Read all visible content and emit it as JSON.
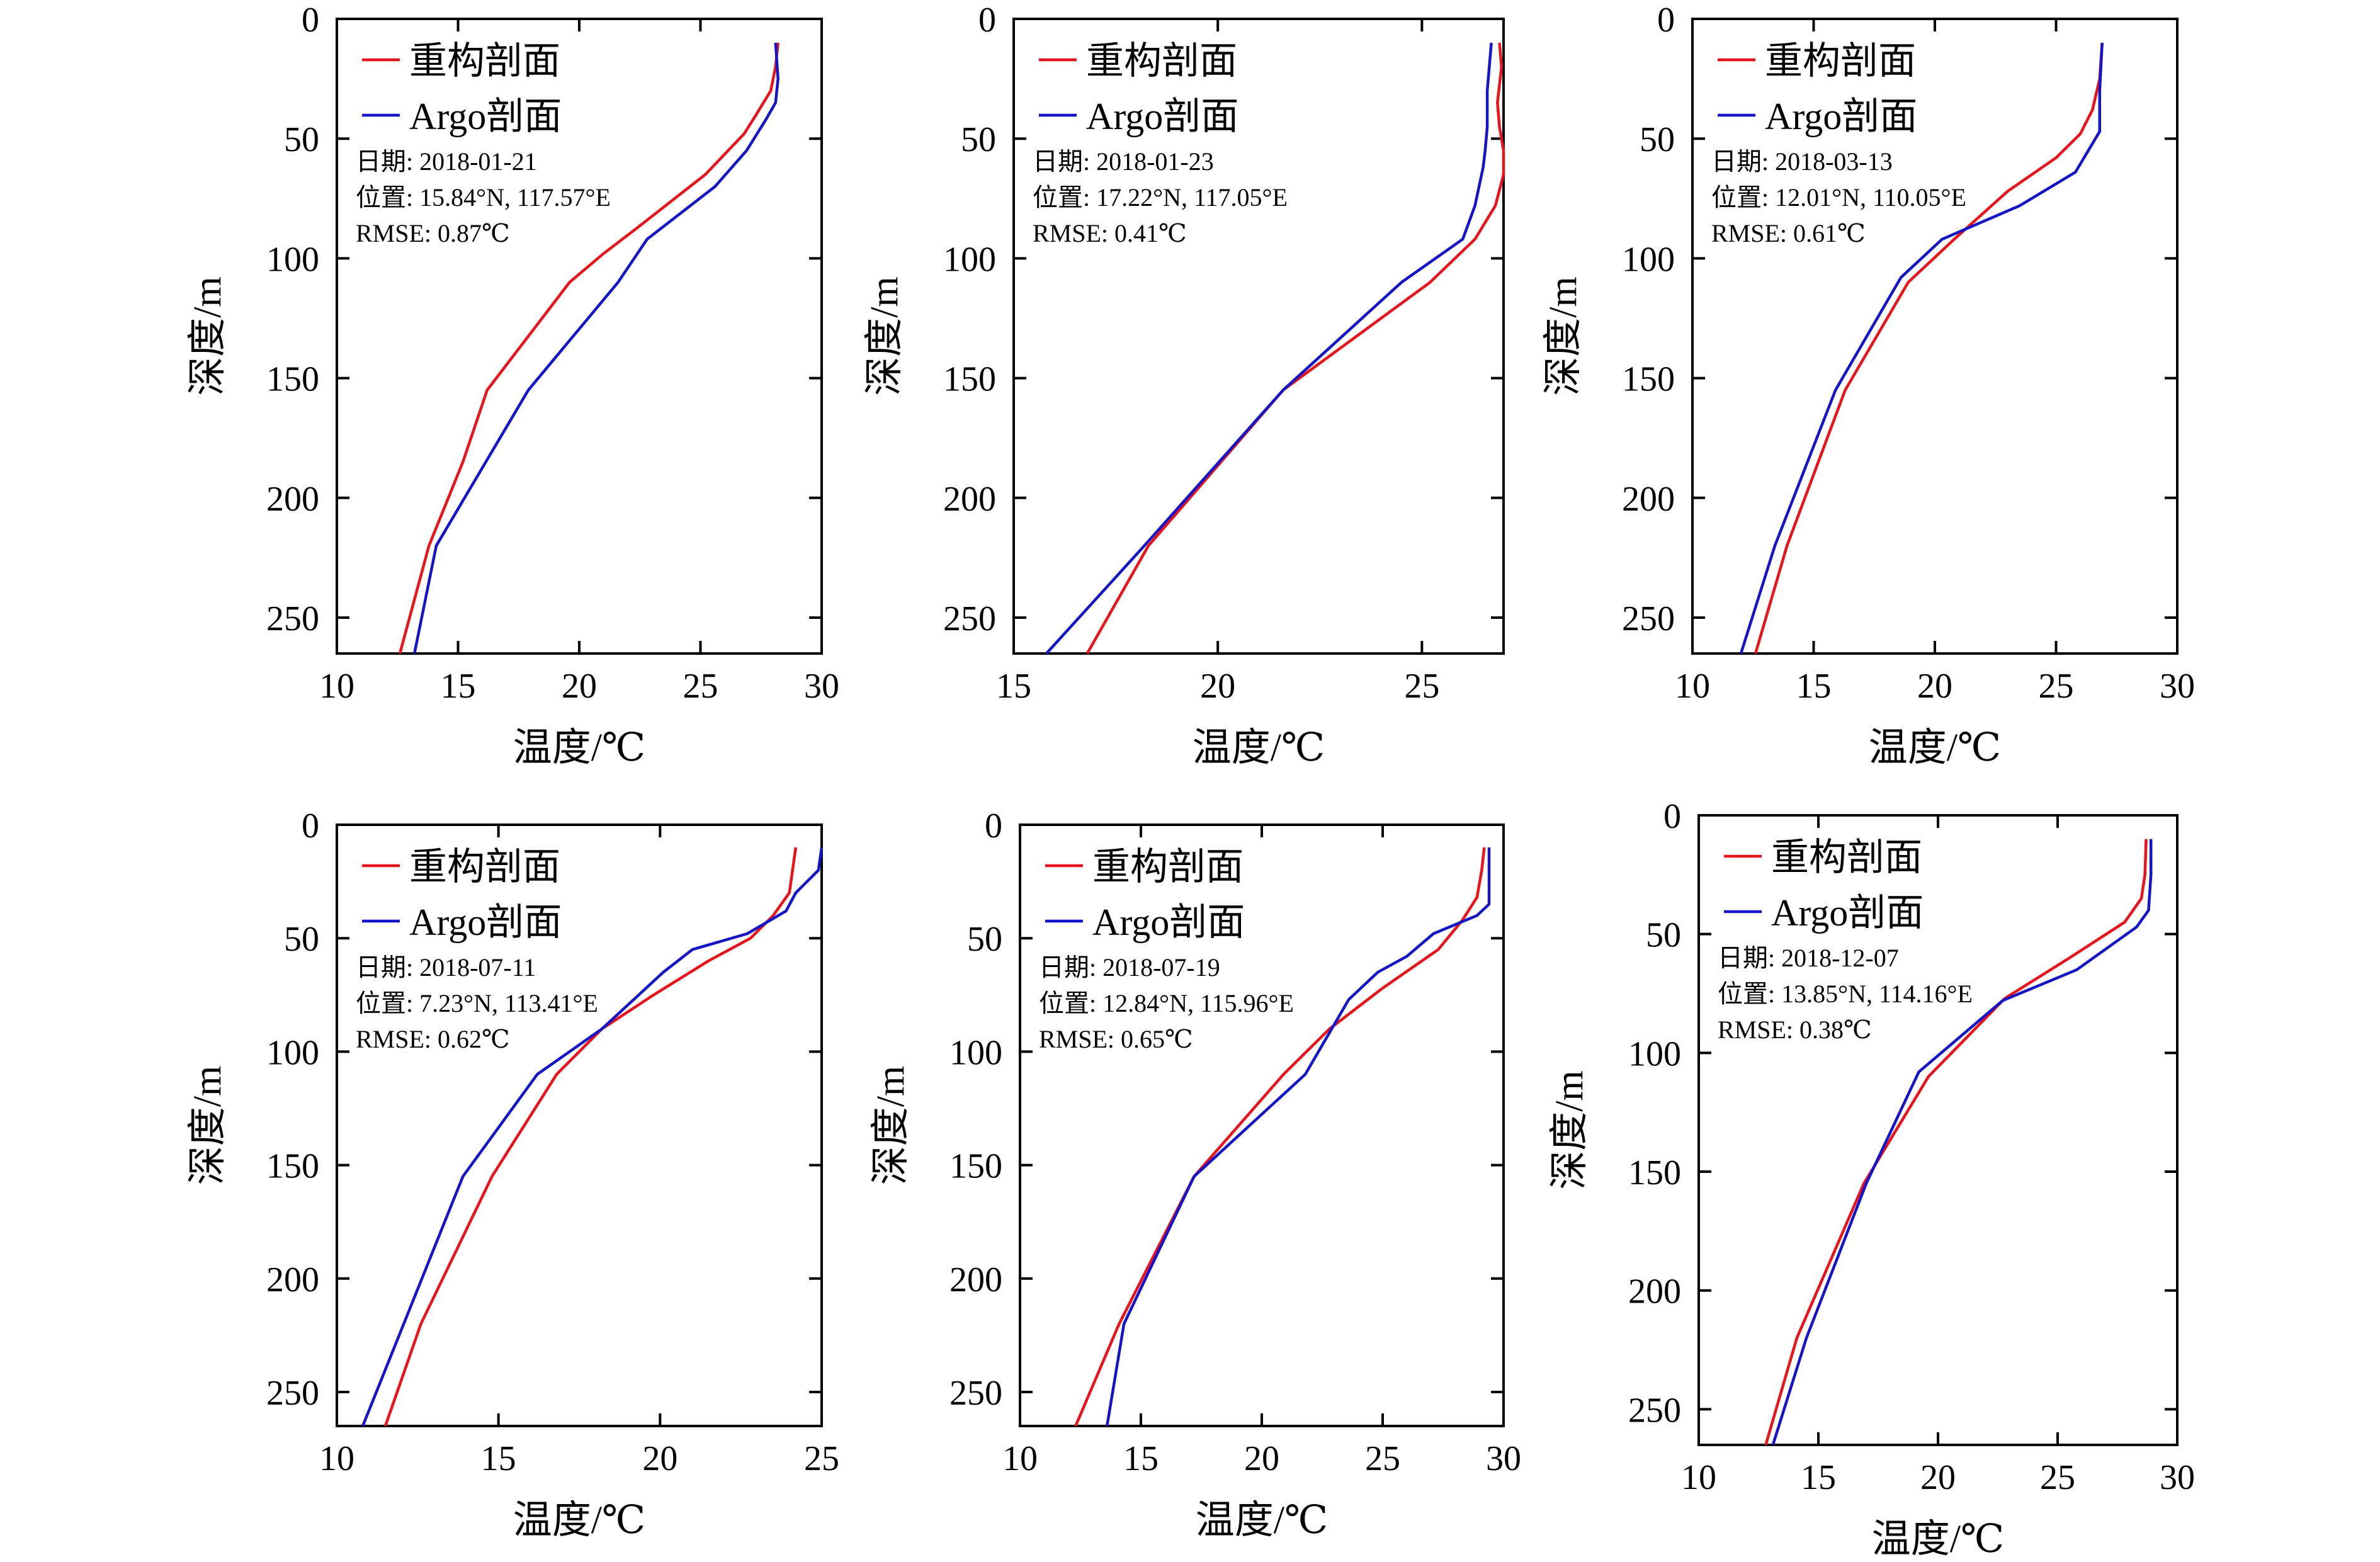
{
  "colors": {
    "reconstructed": "#e8141c",
    "argo": "#1414c8",
    "axis": "#000000",
    "background": "#ffffff"
  },
  "chart_data": [
    {
      "type": "line",
      "xlabel": "温度/℃",
      "ylabel": "深度/m",
      "xlim": [
        10,
        30
      ],
      "ylim": [
        0,
        265
      ],
      "y_inverted": true,
      "xticks": [
        10,
        15,
        20,
        25,
        30
      ],
      "yticks": [
        0,
        50,
        100,
        150,
        200,
        250
      ],
      "legend": "top-left",
      "annotations": [
        "日期: 2018-01-21",
        "位置: 15.84°N, 117.57°E",
        "RMSE: 0.87℃"
      ],
      "series": [
        {
          "name": "重构剖面",
          "color": "#e8141c",
          "x": [
            28.2,
            28.1,
            27.9,
            27.3,
            26.8,
            25.2,
            22.3,
            21.0,
            19.6,
            16.2,
            15.2,
            13.8,
            12.6
          ],
          "y": [
            10,
            20,
            30,
            40,
            48,
            65,
            88,
            98,
            110,
            155,
            185,
            220,
            265
          ]
        },
        {
          "name": "Argo剖面",
          "color": "#1414c8",
          "x": [
            28.1,
            28.2,
            28.1,
            27.7,
            26.9,
            25.6,
            22.8,
            21.6,
            17.9,
            14.1,
            13.2
          ],
          "y": [
            10,
            25,
            35,
            42,
            55,
            70,
            92,
            110,
            155,
            220,
            265
          ]
        }
      ]
    },
    {
      "type": "line",
      "xlabel": "温度/℃",
      "ylabel": "深度/m",
      "xlim": [
        15,
        27
      ],
      "ylim": [
        0,
        265
      ],
      "y_inverted": true,
      "xticks": [
        15,
        20,
        25
      ],
      "yticks": [
        0,
        50,
        100,
        150,
        200,
        250
      ],
      "legend": "top-left",
      "annotations": [
        "日期: 2018-01-23",
        "位置: 17.22°N, 117.05°E",
        "RMSE: 0.41℃"
      ],
      "series": [
        {
          "name": "重构剖面",
          "color": "#e8141c",
          "x": [
            26.9,
            26.95,
            26.85,
            26.9,
            27.0,
            27.0,
            26.8,
            26.3,
            25.2,
            21.6,
            18.3,
            16.8
          ],
          "y": [
            10,
            20,
            35,
            45,
            55,
            65,
            78,
            92,
            110,
            155,
            220,
            265
          ]
        },
        {
          "name": "Argo剖面",
          "color": "#1414c8",
          "x": [
            26.7,
            26.6,
            26.6,
            26.55,
            26.5,
            26.3,
            26.0,
            24.5,
            21.6,
            18.2,
            15.8
          ],
          "y": [
            10,
            30,
            45,
            55,
            62,
            78,
            92,
            110,
            155,
            220,
            265
          ]
        }
      ]
    },
    {
      "type": "line",
      "xlabel": "温度/℃",
      "ylabel": "深度/m",
      "xlim": [
        10,
        30
      ],
      "ylim": [
        0,
        265
      ],
      "y_inverted": true,
      "xticks": [
        10,
        15,
        20,
        25,
        30
      ],
      "yticks": [
        0,
        50,
        100,
        150,
        200,
        250
      ],
      "legend": "top-left",
      "annotations": [
        "日期: 2018-03-13",
        "位置: 12.01°N, 110.05°E",
        "RMSE: 0.61℃"
      ],
      "series": [
        {
          "name": "重构剖面",
          "color": "#e8141c",
          "x": [
            26.9,
            26.8,
            26.5,
            26.0,
            25.0,
            23.0,
            20.8,
            18.9,
            16.3,
            13.9,
            12.6
          ],
          "y": [
            10,
            25,
            38,
            48,
            58,
            72,
            92,
            110,
            155,
            220,
            265
          ]
        },
        {
          "name": "Argo剖面",
          "color": "#1414c8",
          "x": [
            26.9,
            26.8,
            26.8,
            25.8,
            23.5,
            20.3,
            18.6,
            15.9,
            13.4,
            12.0
          ],
          "y": [
            10,
            30,
            47,
            64,
            78,
            92,
            108,
            155,
            220,
            265
          ]
        }
      ]
    },
    {
      "type": "line",
      "xlabel": "温度/℃",
      "ylabel": "深度/m",
      "xlim": [
        10,
        25
      ],
      "ylim": [
        0,
        265
      ],
      "y_inverted": true,
      "xticks": [
        10,
        15,
        20,
        25
      ],
      "yticks": [
        0,
        50,
        100,
        150,
        200,
        250
      ],
      "legend": "top-left",
      "annotations": [
        "日期: 2018-07-11",
        "位置: 7.23°N, 113.41°E",
        "RMSE: 0.62℃"
      ],
      "series": [
        {
          "name": "重构剖面",
          "color": "#e8141c",
          "x": [
            24.2,
            24.1,
            24.0,
            23.5,
            22.8,
            21.5,
            19.8,
            18.2,
            16.8,
            14.8,
            12.6,
            11.5
          ],
          "y": [
            10,
            20,
            30,
            40,
            50,
            60,
            75,
            90,
            110,
            155,
            220,
            265
          ]
        },
        {
          "name": "Argo剖面",
          "color": "#1414c8",
          "x": [
            25.0,
            24.9,
            24.2,
            23.9,
            22.7,
            21.0,
            20.1,
            18.2,
            16.2,
            13.9,
            10.8
          ],
          "y": [
            10,
            20,
            30,
            38,
            48,
            55,
            65,
            90,
            110,
            155,
            265
          ]
        }
      ]
    },
    {
      "type": "line",
      "xlabel": "温度/℃",
      "ylabel": "深度/m",
      "xlim": [
        10,
        30
      ],
      "ylim": [
        0,
        265
      ],
      "y_inverted": true,
      "xticks": [
        10,
        15,
        20,
        25,
        30
      ],
      "yticks": [
        0,
        50,
        100,
        150,
        200,
        250
      ],
      "legend": "top-left",
      "annotations": [
        "日期: 2018-07-19",
        "位置: 12.84°N, 115.96°E",
        "RMSE: 0.65℃"
      ],
      "series": [
        {
          "name": "重构剖面",
          "color": "#e8141c",
          "x": [
            29.2,
            29.1,
            28.9,
            28.3,
            27.3,
            25.0,
            22.8,
            20.9,
            17.2,
            14.1,
            12.3
          ],
          "y": [
            10,
            20,
            32,
            42,
            55,
            72,
            90,
            110,
            155,
            220,
            265
          ]
        },
        {
          "name": "Argo剖面",
          "color": "#1414c8",
          "x": [
            29.4,
            29.4,
            29.4,
            28.9,
            27.1,
            26.0,
            24.8,
            23.6,
            21.8,
            17.2,
            14.3,
            13.6
          ],
          "y": [
            10,
            25,
            35,
            40,
            48,
            58,
            65,
            77,
            110,
            155,
            220,
            265
          ]
        }
      ]
    },
    {
      "type": "line",
      "xlabel": "温度/℃",
      "ylabel": "深度/m",
      "xlim": [
        10,
        30
      ],
      "ylim": [
        0,
        265
      ],
      "y_inverted": true,
      "xticks": [
        10,
        15,
        20,
        25,
        30
      ],
      "yticks": [
        0,
        50,
        100,
        150,
        200,
        250
      ],
      "legend": "top-left",
      "annotations": [
        "日期: 2018-12-07",
        "位置: 13.85°N, 114.16°E",
        "RMSE: 0.38℃"
      ],
      "series": [
        {
          "name": "重构剖面",
          "color": "#e8141c",
          "x": [
            28.7,
            28.65,
            28.5,
            27.8,
            25.5,
            22.8,
            19.6,
            16.9,
            14.1,
            12.8
          ],
          "y": [
            10,
            25,
            35,
            45,
            60,
            77,
            110,
            155,
            220,
            265
          ]
        },
        {
          "name": "Argo剖面",
          "color": "#1414c8",
          "x": [
            28.9,
            28.9,
            28.8,
            28.3,
            25.8,
            22.7,
            19.2,
            17.0,
            14.5,
            13.1
          ],
          "y": [
            10,
            25,
            40,
            47,
            65,
            78,
            108,
            155,
            220,
            265
          ]
        }
      ]
    }
  ]
}
